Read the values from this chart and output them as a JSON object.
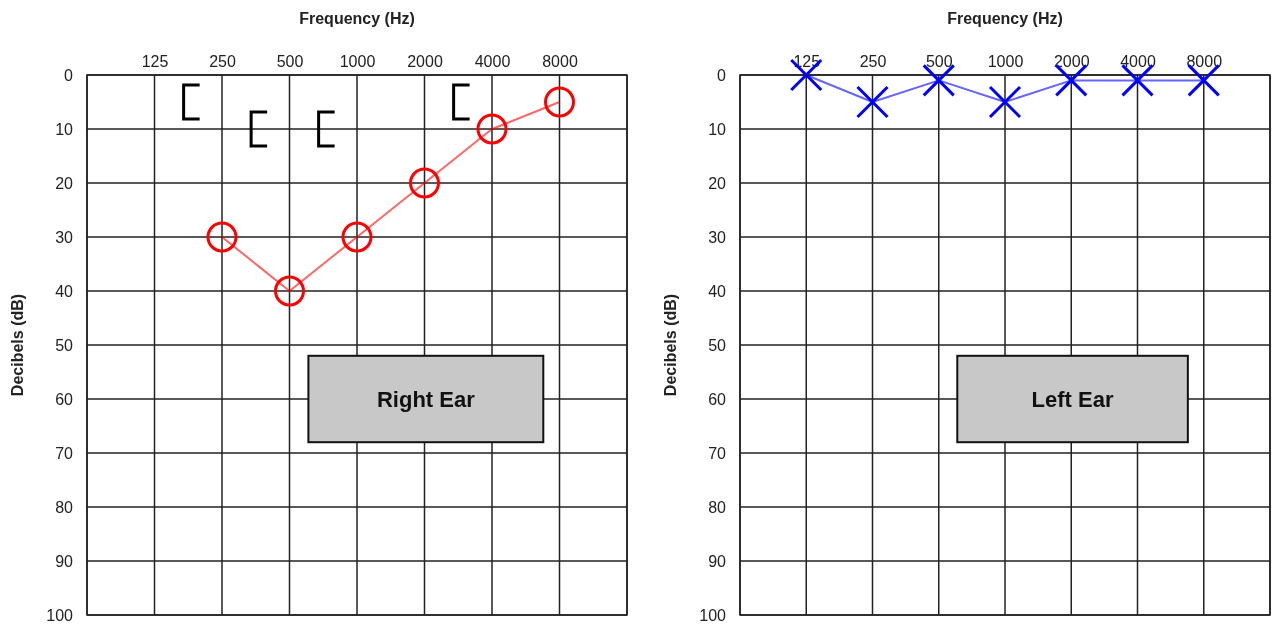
{
  "chart_data": [
    {
      "type": "line",
      "xlabel": "Frequency (Hz)",
      "ylabel": "Decibels (dB)",
      "categories": [
        null,
        "125",
        "250",
        "500",
        "1000",
        "2000",
        "4000",
        "8000",
        null
      ],
      "ylim": [
        100,
        0
      ],
      "yticks": [
        0,
        10,
        20,
        30,
        40,
        50,
        60,
        70,
        80,
        90,
        100
      ],
      "grid": true,
      "annotations": [
        "Right Ear"
      ],
      "series": [
        {
          "color": "#ff0000",
          "marker": "circle",
          "values": [
            null,
            null,
            30,
            40,
            30,
            20,
            10,
            5,
            null
          ]
        },
        {
          "type": "scatter",
          "color": "#000000",
          "values": [
            null,
            null,
            5,
            10,
            10,
            null,
            5,
            null,
            null
          ]
        }
      ]
    },
    {
      "type": "line",
      "xlabel": "Frequency (Hz)",
      "ylabel": "Decibels (dB)",
      "categories": [
        null,
        "125",
        "250",
        "500",
        "1000",
        "2000",
        "4000",
        "8000",
        null
      ],
      "ylim": [
        100,
        0
      ],
      "yticks": [
        0,
        10,
        20,
        30,
        40,
        50,
        60,
        70,
        80,
        90,
        100
      ],
      "grid": true,
      "annotations": [
        "Left Ear"
      ],
      "series": [
        {
          "color": "#0000ff",
          "marker": "cross",
          "values": [
            null,
            0,
            5,
            1,
            5,
            1,
            1,
            1,
            null
          ]
        }
      ]
    }
  ]
}
